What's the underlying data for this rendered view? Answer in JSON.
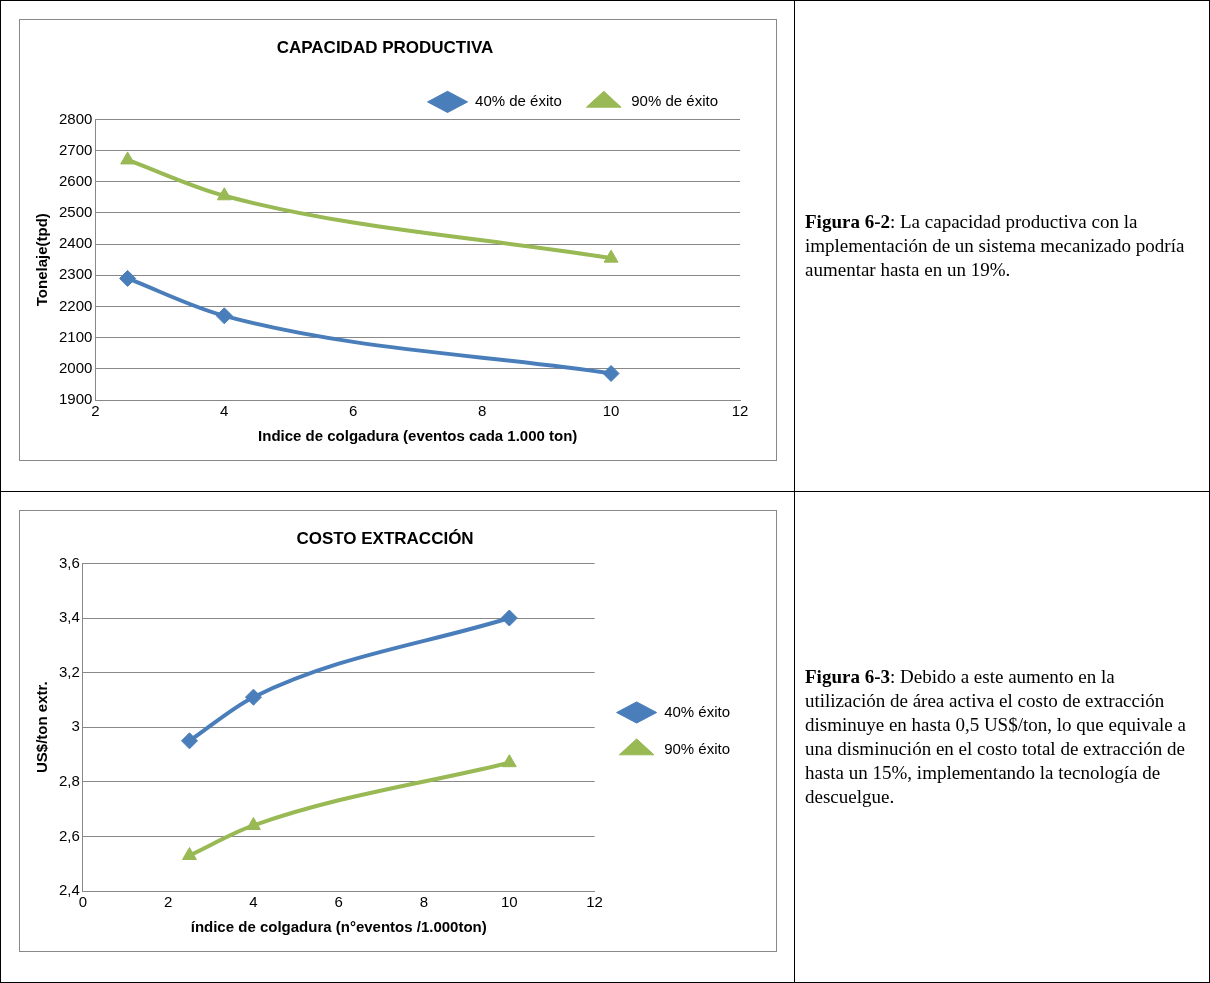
{
  "chart_data": [
    {
      "type": "line",
      "title": "CAPACIDAD PRODUCTIVA",
      "xlabel": "Indice de colgadura (eventos cada 1.000 ton)",
      "ylabel": "Tonelaje(tpd)",
      "x": [
        2.5,
        4,
        10
      ],
      "series": [
        {
          "name": "40% de éxito",
          "color": "#4a7ebb",
          "marker": "diamond",
          "values": [
            2290,
            2170,
            1985
          ]
        },
        {
          "name": "90% de éxito",
          "color": "#98b954",
          "marker": "triangle",
          "values": [
            2670,
            2555,
            2355
          ]
        }
      ],
      "xlim": [
        2,
        12
      ],
      "xticks": [
        2,
        4,
        6,
        8,
        10,
        12
      ],
      "ylim": [
        1900,
        2800
      ],
      "yticks": [
        1900,
        2000,
        2100,
        2200,
        2300,
        2400,
        2500,
        2600,
        2700,
        2800
      ],
      "grid": "y",
      "legend": "top right",
      "annotations": [
        "Figura 6-2: La capacidad productiva con la implementación de un sistema mecanizado podría aumentar hasta en un 19%."
      ]
    },
    {
      "type": "line",
      "title": "COSTO EXTRACCIÓN",
      "xlabel": "índice de colgadura (n°eventos /1.000ton)",
      "ylabel": "US$/ton extr.",
      "x": [
        2.5,
        4,
        10
      ],
      "series": [
        {
          "name": "40% éxito",
          "color": "#4a7ebb",
          "marker": "diamond",
          "values": [
            2.95,
            3.11,
            3.4
          ]
        },
        {
          "name": "90% éxito",
          "color": "#98b954",
          "marker": "triangle",
          "values": [
            2.53,
            2.64,
            2.87
          ]
        }
      ],
      "xlim": [
        0,
        12
      ],
      "xticks": [
        0,
        2,
        4,
        6,
        8,
        10,
        12
      ],
      "ylim": [
        2.4,
        3.6
      ],
      "yticks": [
        {
          "value": 2.4,
          "label": "2,4"
        },
        {
          "value": 2.6,
          "label": "2,6"
        },
        {
          "value": 2.8,
          "label": "2,8"
        },
        3,
        {
          "value": 3.2,
          "label": "3,2"
        },
        {
          "value": 3.4,
          "label": "3,4"
        },
        {
          "value": 3.6,
          "label": "3,6"
        }
      ],
      "grid": "y",
      "legend": "right",
      "annotations": [
        "Figura 6-3: Debido a este aumento en la utilización de área activa el costo de extracción disminuye en hasta 0,5 US$/ton, lo que equivale a una disminución en el costo total de extracción de hasta un 15%, implementando la tecnología de descuelgue."
      ]
    }
  ]
}
